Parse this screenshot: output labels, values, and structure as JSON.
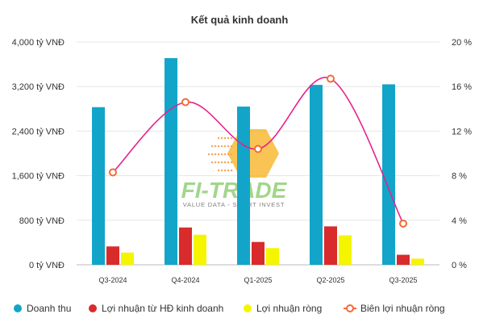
{
  "chart_data": {
    "type": "bar",
    "title": "Kết quả kinh doanh",
    "categories": [
      "Q3-2024",
      "Q4-2024",
      "Q1-2025",
      "Q2-2025",
      "Q3-2025"
    ],
    "y_left": {
      "ticks": [
        "0 tỷ VNĐ",
        "800 tỷ VNĐ",
        "1,600 tỷ VNĐ",
        "2,400 tỷ VNĐ",
        "3,200 tỷ VNĐ",
        "4,000 tỷ VNĐ"
      ],
      "range": [
        0,
        4000
      ]
    },
    "y_right": {
      "ticks": [
        "0 %",
        "4 %",
        "8 %",
        "12 %",
        "16 %",
        "20 %"
      ],
      "range": [
        0,
        20
      ]
    },
    "series": [
      {
        "name": "Doanh thu",
        "kind": "bar",
        "axis": "left",
        "color": "#12a5c9",
        "values": [
          2830,
          3710,
          2840,
          3230,
          3240
        ]
      },
      {
        "name": "Lợi nhuận từ HĐ kinh doanh",
        "kind": "bar",
        "axis": "left",
        "color": "#d92b2b",
        "values": [
          330,
          670,
          410,
          690,
          180
        ]
      },
      {
        "name": "Lợi nhuận ròng",
        "kind": "bar",
        "axis": "left",
        "color": "#f5f500",
        "values": [
          220,
          540,
          300,
          530,
          110
        ]
      },
      {
        "name": "Biên lợi nhuận ròng",
        "kind": "line",
        "axis": "right",
        "color": "#e6228c",
        "marker_color": "#f26b38",
        "values": [
          8.3,
          14.6,
          10.4,
          16.7,
          3.7
        ]
      }
    ],
    "legend_position": "bottom",
    "grid": true
  },
  "watermark": {
    "brand": "FI-TRADE",
    "tagline": "VALUE DATA - SMART INVEST"
  }
}
